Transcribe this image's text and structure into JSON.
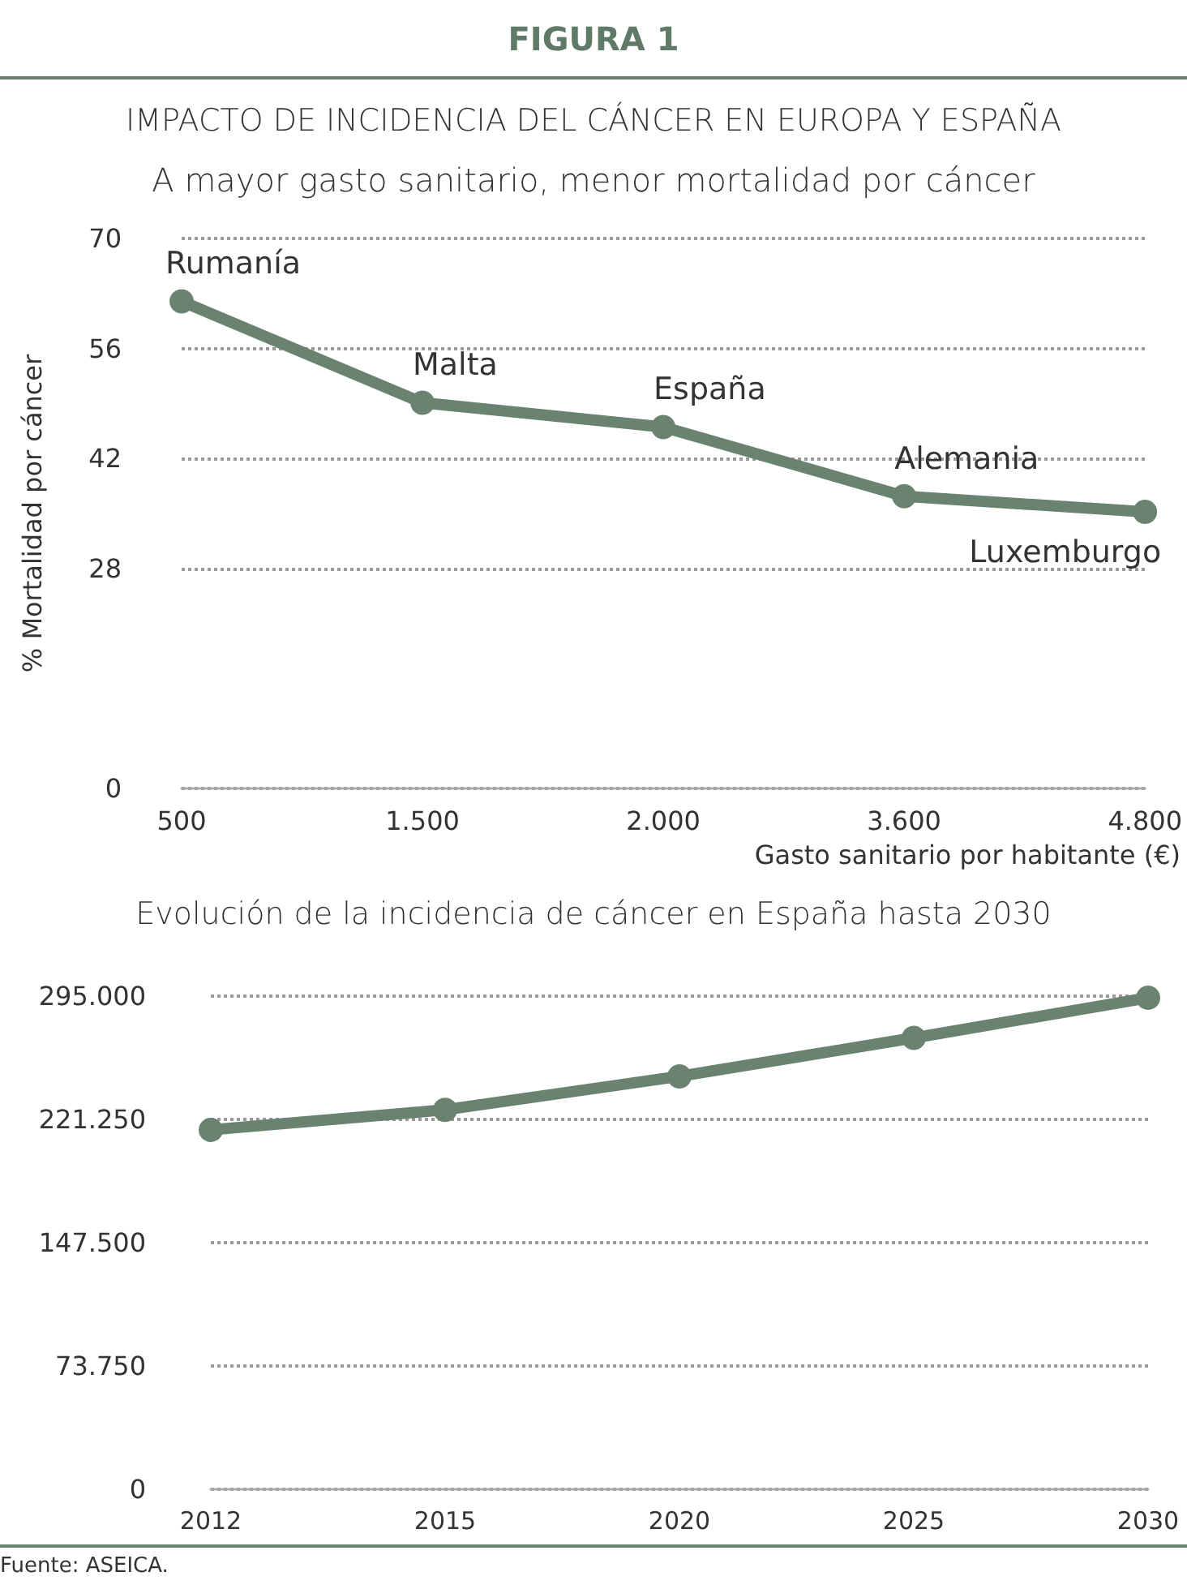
{
  "chart_data": [
    {
      "type": "line",
      "title": "IMPACTO DE INCIDENCIA DEL CÁNCER EN EUROPA Y ESPAÑA",
      "subtitle": "A mayor gasto sanitario, menor mortalidad por cáncer",
      "xlabel": "Gasto sanitario por habitante (€)",
      "ylabel": "% Mortalidad por cáncer",
      "categories": [
        "500",
        "1.500",
        "2.000",
        "3.600",
        "4.800"
      ],
      "series": [
        {
          "color": "#6a8270",
          "values": [
            62.0,
            49.1,
            46.0,
            37.2,
            35.2
          ]
        }
      ],
      "ylim": [
        0,
        70
      ],
      "yticks": [
        0,
        28,
        42,
        56,
        70
      ],
      "grid": "y",
      "marker": "circle",
      "line_style": "solid",
      "annotations": [
        "FIGURA 1",
        {
          "text": "Rumanía",
          "x": "500",
          "y": 62.0
        },
        {
          "text": "Malta",
          "x": "1.500",
          "y": 49.1
        },
        {
          "text": "España",
          "x": "2.000",
          "y": 46.0
        },
        {
          "text": "Alemania",
          "x": "3.600",
          "y": 37.2
        },
        {
          "text": "Luxemburgo",
          "x": "4.800",
          "y": 35.2
        }
      ]
    },
    {
      "type": "line",
      "title": "Evolución de la incidencia de cáncer en España hasta 2030",
      "categories": [
        "2012",
        "2015",
        "2020",
        "2025",
        "2030"
      ],
      "series": [
        {
          "color": "#6a8270",
          "values": [
            215000,
            227000,
            247000,
            270000,
            294000
          ]
        }
      ],
      "ylim": [
        0,
        295000
      ],
      "yticks": [
        {
          "value": 0,
          "label": "0"
        },
        {
          "value": 73750,
          "label": "73.750"
        },
        {
          "value": 147500,
          "label": "147.500"
        },
        {
          "value": 221250,
          "label": "221.250"
        },
        {
          "value": 295000,
          "label": "295.000"
        }
      ],
      "grid": "y",
      "marker": "circle",
      "line_style": "solid",
      "annotations": [
        "Fuente: ASEICA."
      ]
    }
  ]
}
